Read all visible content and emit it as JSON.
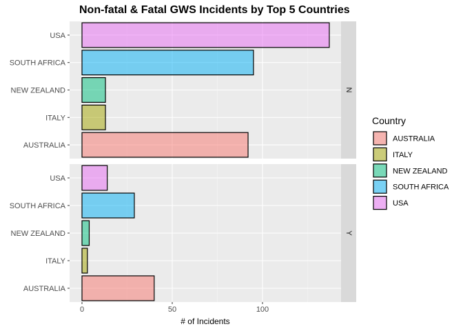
{
  "chart_data": {
    "type": "bar",
    "orientation": "horizontal",
    "title": "Non-fatal & Fatal GWS Incidents by Top 5 Countries",
    "xlabel": "# of Incidents",
    "ylabel": "",
    "xlim": [
      0,
      142
    ],
    "x_ticks": [
      0,
      50,
      100
    ],
    "grid": true,
    "legend": {
      "title": "Country",
      "position": "right",
      "entries": [
        "AUSTRALIA",
        "ITALY",
        "NEW ZEALAND",
        "SOUTH AFRICA",
        "USA"
      ]
    },
    "categories": [
      "USA",
      "SOUTH AFRICA",
      "NEW ZEALAND",
      "ITALY",
      "AUSTRALIA"
    ],
    "colors": {
      "AUSTRALIA": "#F8766D",
      "ITALY": "#A3A500",
      "NEW ZEALAND": "#00BF7D",
      "SOUTH AFRICA": "#00B0F6",
      "USA": "#E76BF3"
    },
    "facets": [
      {
        "label": "N",
        "values": {
          "USA": 137,
          "SOUTH AFRICA": 95,
          "NEW ZEALAND": 13,
          "ITALY": 13,
          "AUSTRALIA": 92
        }
      },
      {
        "label": "Y",
        "values": {
          "USA": 14,
          "SOUTH AFRICA": 29,
          "NEW ZEALAND": 4,
          "ITALY": 3,
          "AUSTRALIA": 40
        }
      }
    ]
  }
}
